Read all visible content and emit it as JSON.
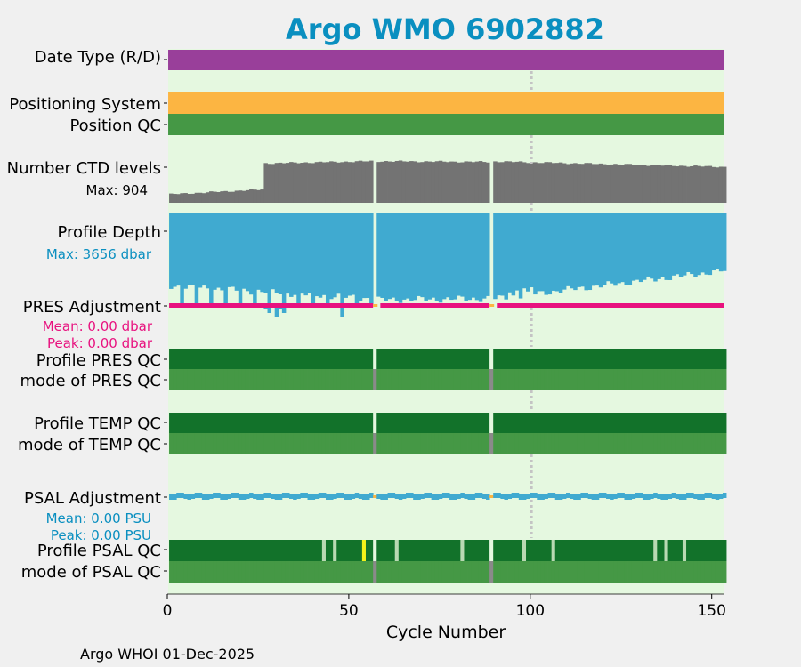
{
  "chart_data": {
    "type": "bar",
    "title": "Argo WMO 6902882",
    "xlabel": "Cycle Number",
    "ylabel": "",
    "xlim": [
      0,
      153
    ],
    "x_ticks": [
      "0",
      "50",
      "100",
      "150"
    ],
    "grid": false,
    "footer": "Argo WHOI 01-Dec-2025",
    "gap_cycles": [
      57,
      89
    ],
    "reference_cycle": 100,
    "rows": {
      "date_type": {
        "label": "Date Type (R/D)",
        "color": "#993f9a"
      },
      "positioning_system": {
        "label": "Positioning System",
        "color": "#fcb542"
      },
      "position_qc": {
        "label": "Position QC",
        "color": "#459845"
      },
      "ctd_levels": {
        "label": "Number CTD levels",
        "max_label": "Max: 904",
        "max": 904,
        "color": "#737373",
        "segments": [
          {
            "from": 1,
            "to": 26,
            "start": 180,
            "end": 280
          },
          {
            "from": 27,
            "to": 56,
            "start": 835,
            "end": 880
          },
          {
            "from": 58,
            "to": 88,
            "start": 880,
            "end": 865
          },
          {
            "from": 90,
            "to": 153,
            "start": 875,
            "end": 760
          }
        ]
      },
      "profile_depth": {
        "label": "Profile Depth",
        "max_label": "Max: 3656 dbar",
        "max": 3656,
        "color": "#40aad0",
        "segments": [
          {
            "from": 1,
            "to": 56,
            "start": 2900,
            "end": 3400
          },
          {
            "from": 58,
            "to": 88,
            "start": 3450,
            "end": 3400
          },
          {
            "from": 90,
            "to": 153,
            "start": 3400,
            "end": 2300
          }
        ]
      },
      "pres_adjustment": {
        "label": "PRES Adjustment",
        "mean_label": "Mean: 0.00 dbar",
        "peak_label": "Peak: 0.00 dbar",
        "color": "#e8127f"
      },
      "profile_pres_qc": {
        "label": "Profile PRES QC",
        "color": "#12722a"
      },
      "mode_pres_qc": {
        "label": "mode of PRES QC",
        "color": "#459845"
      },
      "profile_temp_qc": {
        "label": "Profile TEMP QC",
        "color": "#12722a"
      },
      "mode_temp_qc": {
        "label": "mode of TEMP QC",
        "color": "#459845"
      },
      "psal_adjustment": {
        "label": "PSAL Adjustment",
        "mean_label": "Mean: 0.00 PSU",
        "peak_label": "Peak: 0.00 PSU",
        "color": "#40aad0"
      },
      "profile_psal_qc": {
        "label": "Profile PSAL QC",
        "color": "#12722a",
        "partial_cycles": [
          43,
          46,
          63,
          81,
          98,
          106,
          134,
          137,
          142
        ],
        "bad_cycles": [
          54
        ]
      },
      "mode_psal_qc": {
        "label": "mode of PSAL QC",
        "color": "#459845"
      }
    }
  }
}
